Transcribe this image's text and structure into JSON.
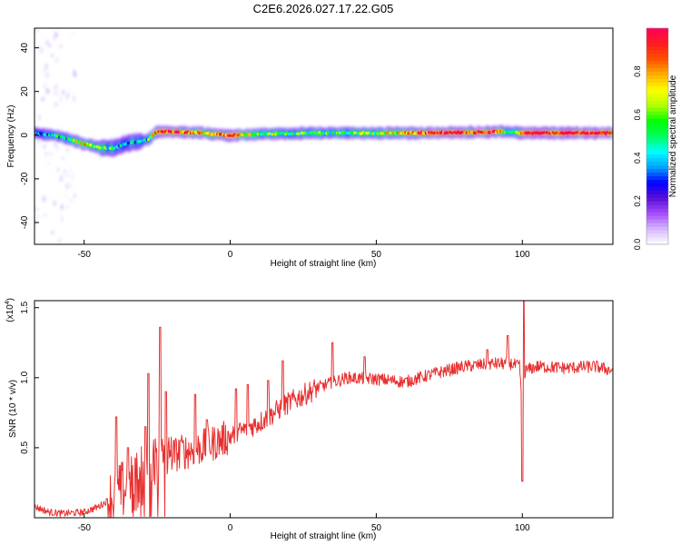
{
  "figure": {
    "title": "C2E6.2026.027.17.22.G05"
  },
  "chart_data": [
    {
      "type": "heatmap",
      "title": "C2E6.2026.027.17.22.G05",
      "xlabel": "Height of straight line (km)",
      "ylabel": "Frequency (Hz)",
      "xlim": [
        -67,
        131
      ],
      "ylim": [
        -50,
        49
      ],
      "xticks": [
        -50,
        0,
        50,
        100
      ],
      "yticks": [
        -40,
        -20,
        0,
        20,
        40
      ],
      "colorbar": {
        "label": "Normalized spectral amplitude",
        "range": [
          0,
          1
        ],
        "ticks": [
          "0.0",
          "0.2",
          "0.4",
          "0.6",
          "0.8"
        ],
        "tick_values": [
          0,
          0.2,
          0.4,
          0.6,
          0.8
        ],
        "colors": [
          "#ffffff",
          "#d6b8ff",
          "#a64dff",
          "#5b0fd6",
          "#0000ff",
          "#00a0ff",
          "#00ffff",
          "#00ff60",
          "#00ff00",
          "#b0ff00",
          "#ffff00",
          "#ffb000",
          "#ff5000",
          "#ff1e1e",
          "#ff005a"
        ]
      },
      "ridge": {
        "x": [
          -67,
          -60,
          -55,
          -50,
          -45,
          -40,
          -36,
          -32,
          -28,
          -25,
          -20,
          -10,
          0,
          10,
          30,
          50,
          70,
          90,
          96,
          100,
          110,
          131
        ],
        "freq": [
          1,
          0,
          -2,
          -4,
          -5.5,
          -6,
          -4,
          -3,
          -2,
          1.5,
          1.5,
          1,
          0,
          0.5,
          1,
          1,
          1,
          1.5,
          1.5,
          1,
          1,
          1
        ],
        "amplitude": [
          0.4,
          0.45,
          0.5,
          0.75,
          0.55,
          0.5,
          0.3,
          0.4,
          0.5,
          0.85,
          0.9,
          0.75,
          0.9,
          0.6,
          0.5,
          0.6,
          0.95,
          0.92,
          0.45,
          0.95,
          0.95,
          0.98
        ]
      }
    },
    {
      "type": "line",
      "xlabel": "Height of straight line (km)",
      "ylabel": "SNR (10 * v/v)",
      "scale_label": "(x10",
      "scale_exp": "4",
      "xlim": [
        -67,
        131
      ],
      "ylim": [
        0,
        1.55
      ],
      "xticks": [
        -50,
        0,
        50,
        100
      ],
      "yticks": [
        0.5,
        1.0,
        1.5
      ],
      "ytick_labels": [
        "0.5",
        "1.0",
        "1.5"
      ],
      "series_color": "#e83030",
      "envelope": {
        "x": [
          -67,
          -62,
          -57,
          -50,
          -45,
          -40,
          -35,
          -30,
          -25,
          -20,
          -10,
          0,
          10,
          20,
          30,
          40,
          50,
          60,
          70,
          80,
          90,
          96,
          99,
          100,
          101,
          105,
          115,
          125,
          131
        ],
        "y": [
          0.08,
          0.04,
          0.03,
          0.04,
          0.08,
          0.15,
          0.22,
          0.3,
          0.38,
          0.45,
          0.5,
          0.58,
          0.68,
          0.82,
          0.93,
          1.0,
          0.99,
          0.97,
          1.03,
          1.08,
          1.1,
          1.1,
          1.08,
          0.8,
          1.05,
          1.08,
          1.07,
          1.08,
          1.05
        ]
      },
      "spikes": [
        {
          "x": -39,
          "y": 0.72
        },
        {
          "x": -35,
          "y": 0.5
        },
        {
          "x": -29,
          "y": 0.65
        },
        {
          "x": -28,
          "y": 1.03
        },
        {
          "x": -24,
          "y": 1.36
        },
        {
          "x": -22,
          "y": 0.9
        },
        {
          "x": -17,
          "y": 0.55
        },
        {
          "x": -12,
          "y": 0.88
        },
        {
          "x": -8,
          "y": 0.7
        },
        {
          "x": 2,
          "y": 0.92
        },
        {
          "x": 6,
          "y": 0.95
        },
        {
          "x": 13,
          "y": 0.98
        },
        {
          "x": 18,
          "y": 1.12
        },
        {
          "x": 35,
          "y": 1.25
        },
        {
          "x": 46,
          "y": 1.15
        },
        {
          "x": 88,
          "y": 1.2
        },
        {
          "x": 95,
          "y": 1.3
        },
        {
          "x": 100.5,
          "y": 1.55
        },
        {
          "x": 100,
          "y": 0.26
        }
      ]
    }
  ]
}
